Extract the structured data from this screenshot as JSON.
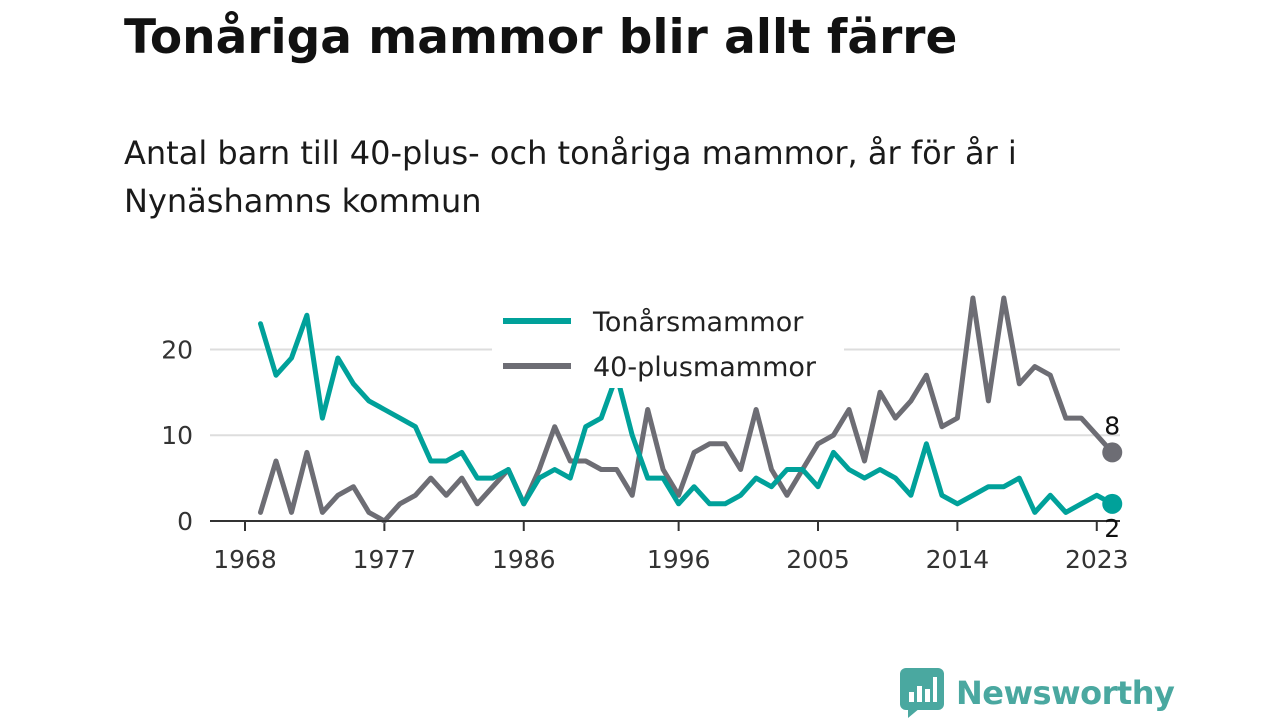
{
  "header": {
    "title": "Tonåriga mammor blir allt färre",
    "subtitle": "Antal barn till 40-plus- och tonåriga mammor, år för år i Nynäshamns kommun"
  },
  "chart_data": {
    "type": "line",
    "x": [
      1969,
      1970,
      1971,
      1972,
      1973,
      1974,
      1975,
      1976,
      1977,
      1978,
      1979,
      1980,
      1981,
      1982,
      1983,
      1984,
      1985,
      1986,
      1987,
      1988,
      1989,
      1990,
      1991,
      1992,
      1993,
      1994,
      1995,
      1996,
      1997,
      1998,
      1999,
      2000,
      2001,
      2002,
      2003,
      2004,
      2005,
      2006,
      2007,
      2008,
      2009,
      2010,
      2011,
      2012,
      2013,
      2014,
      2015,
      2016,
      2017,
      2018,
      2019,
      2020,
      2021,
      2022,
      2023,
      2024
    ],
    "x_ticks": [
      1968,
      1977,
      1986,
      1996,
      2005,
      2014,
      2023
    ],
    "x_tick_labels": [
      "1968",
      "1977",
      "1986",
      "1996",
      "2005",
      "2014",
      "2023"
    ],
    "y_ticks": [
      0,
      10,
      20
    ],
    "y_tick_labels": [
      "0",
      "10",
      "20"
    ],
    "xlim": [
      1968,
      2024.5
    ],
    "ylim": [
      0,
      26
    ],
    "grid": "horizontal",
    "legend_placement": "top-center",
    "series": [
      {
        "name": "Tonårsmammor",
        "color": "#00a19a",
        "values": [
          23,
          17,
          19,
          24,
          12,
          19,
          16,
          14,
          13,
          12,
          11,
          7,
          7,
          8,
          5,
          5,
          6,
          2,
          5,
          6,
          5,
          11,
          12,
          17,
          10,
          5,
          5,
          2,
          4,
          2,
          2,
          3,
          5,
          4,
          6,
          6,
          4,
          8,
          6,
          5,
          6,
          5,
          3,
          9,
          3,
          2,
          3,
          4,
          4,
          5,
          1,
          3,
          1,
          2,
          3,
          2
        ],
        "end_label": "2"
      },
      {
        "name": "40-plusmammor",
        "color": "#6d6d74",
        "values": [
          1,
          7,
          1,
          8,
          1,
          3,
          4,
          1,
          0,
          2,
          3,
          5,
          3,
          5,
          2,
          4,
          6,
          2,
          6,
          11,
          7,
          7,
          6,
          6,
          3,
          13,
          6,
          3,
          8,
          9,
          9,
          6,
          13,
          6,
          3,
          6,
          9,
          10,
          13,
          7,
          15,
          12,
          14,
          17,
          11,
          12,
          26,
          14,
          26,
          16,
          18,
          17,
          12,
          12,
          10,
          8
        ],
        "end_label": "8"
      }
    ]
  },
  "footer": {
    "logo_text": "Newsworthy"
  }
}
